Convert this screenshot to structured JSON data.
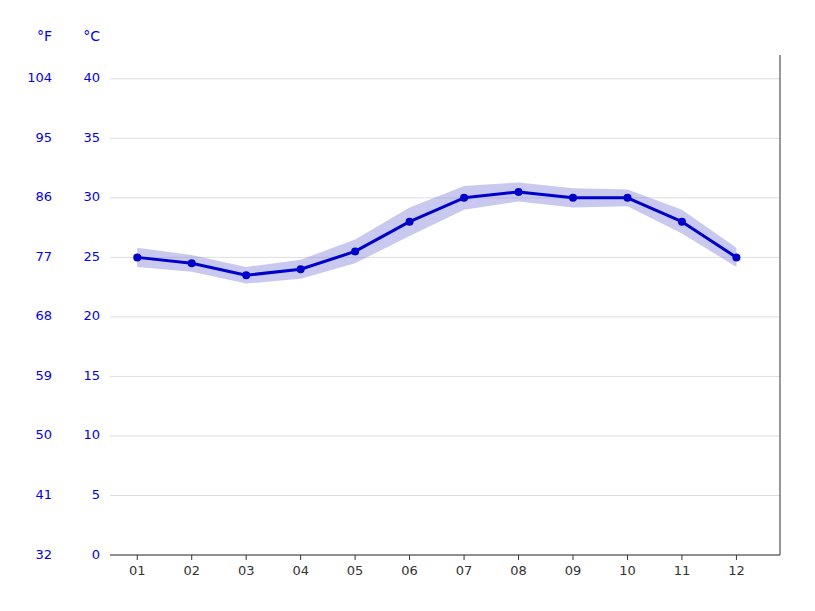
{
  "chart_data": {
    "type": "line",
    "x": [
      1,
      2,
      3,
      4,
      5,
      6,
      7,
      8,
      9,
      10,
      11,
      12
    ],
    "xlim": [
      0.5,
      12.8
    ],
    "xticks": [
      {
        "value": 1,
        "label": "01"
      },
      {
        "value": 2,
        "label": "02"
      },
      {
        "value": 3,
        "label": "03"
      },
      {
        "value": 4,
        "label": "04"
      },
      {
        "value": 5,
        "label": "05"
      },
      {
        "value": 6,
        "label": "06"
      },
      {
        "value": 7,
        "label": "07"
      },
      {
        "value": 8,
        "label": "08"
      },
      {
        "value": 9,
        "label": "09"
      },
      {
        "value": 10,
        "label": "10"
      },
      {
        "value": 11,
        "label": "11"
      },
      {
        "value": 12,
        "label": "12"
      }
    ],
    "y_label": "°C",
    "ylim": [
      0,
      42
    ],
    "yticks": [
      0,
      5,
      10,
      15,
      20,
      25,
      30,
      35,
      40
    ],
    "y2_label": "°F",
    "y2lim": [
      32,
      107.6
    ],
    "y2ticks": [
      32,
      41,
      50,
      59,
      68,
      77,
      86,
      95,
      104
    ],
    "grid": true,
    "series": [
      {
        "type": "band",
        "color": "#8888dd",
        "upper": [
          25.8,
          25.2,
          24.2,
          24.8,
          26.5,
          29.2,
          31.0,
          31.3,
          30.8,
          30.7,
          29.0,
          25.8
        ],
        "lower": [
          24.2,
          23.8,
          22.8,
          23.2,
          24.5,
          26.8,
          29.0,
          29.7,
          29.2,
          29.3,
          27.0,
          24.2
        ]
      },
      {
        "type": "line",
        "color": "#0000cc",
        "marker": "circle",
        "values": [
          25.0,
          24.5,
          23.5,
          24.0,
          25.5,
          28.0,
          30.0,
          30.5,
          30.0,
          30.0,
          28.0,
          25.0
        ]
      }
    ]
  }
}
